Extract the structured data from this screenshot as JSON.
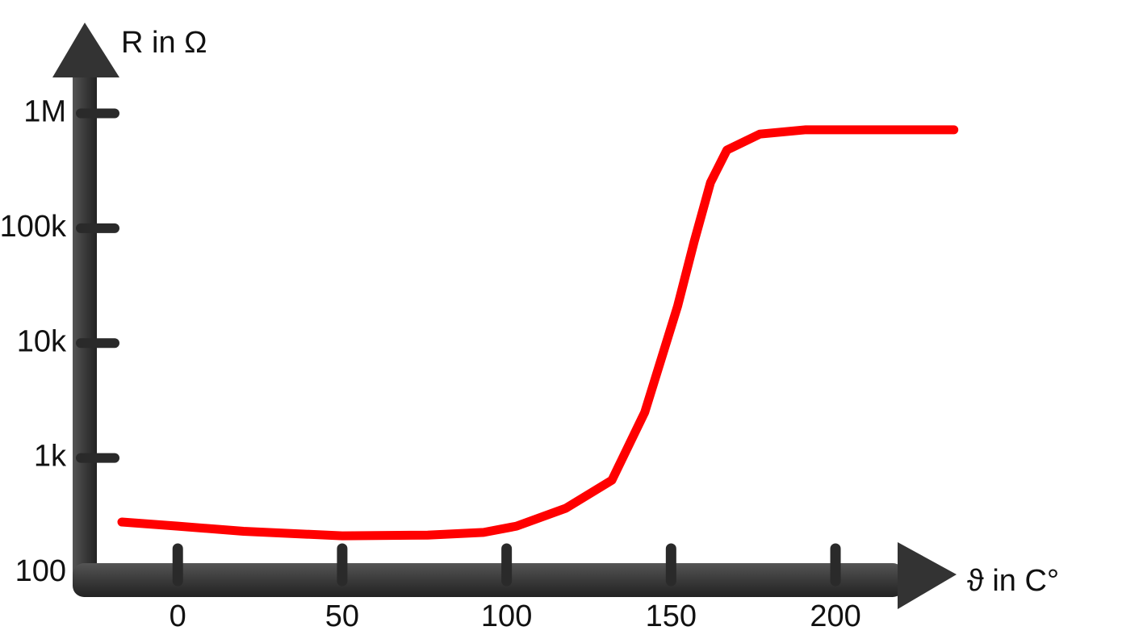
{
  "chart_data": {
    "type": "line",
    "x_label": "ϑ in C°",
    "y_label": "R in Ω",
    "log_y": true,
    "x": [
      -17,
      0,
      20,
      50,
      76,
      93,
      103,
      118,
      132,
      142,
      152,
      157,
      162,
      167,
      177,
      191,
      236
    ],
    "series": [
      {
        "color": "#ff0000",
        "values": [
          277,
          255,
          230,
          210,
          213,
          225,
          255,
          365,
          640,
          2500,
          21000,
          76000,
          250000,
          480000,
          660000,
          720000,
          720000
        ]
      }
    ],
    "xlim": [
      -30,
      240
    ],
    "xticks": [
      0,
      50,
      100,
      150,
      200
    ],
    "ylim": [
      100,
      5000000
    ],
    "yticks": [
      {
        "value": 100,
        "label": "100"
      },
      {
        "value": 1000,
        "label": "1k"
      },
      {
        "value": 10000,
        "label": "10k"
      },
      {
        "value": 100000,
        "label": "100k"
      },
      {
        "value": 1000000,
        "label": "1M"
      }
    ]
  }
}
